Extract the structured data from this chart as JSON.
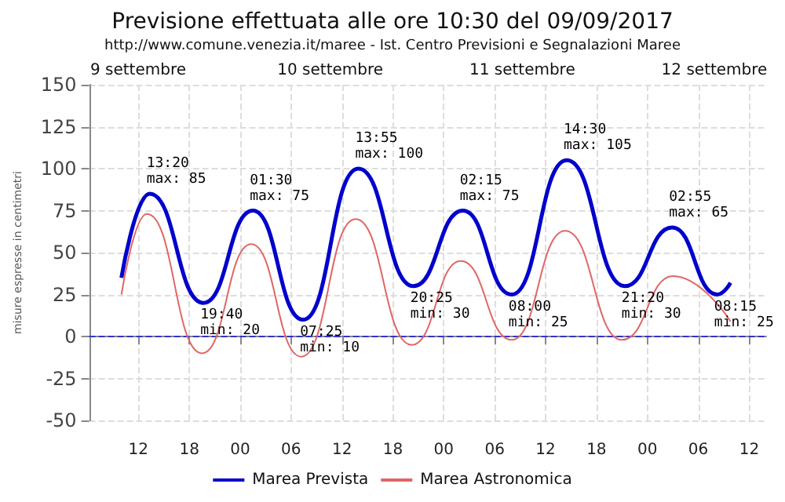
{
  "chart_data": {
    "type": "line",
    "title": "Previsione effettuata alle ore 10:30 del 09/09/2017",
    "subtitle": "http://www.comune.venezia.it/maree - Ist. Centro Previsioni e Segnalazioni Maree",
    "ylabel": "misure espresse in centimetri",
    "series": [
      {
        "name": "Marea Prevista",
        "color": "#0000cc",
        "x": [
          10,
          13.33,
          19.67,
          25.5,
          31.42,
          37.92,
          44.42,
          50.25,
          56,
          62.5,
          69.33,
          74.92,
          80.25,
          81.8
        ],
        "values": [
          35,
          85,
          20,
          75,
          10,
          100,
          30,
          75,
          25,
          105,
          30,
          65,
          25,
          32
        ]
      },
      {
        "name": "Marea Astronomica",
        "color": "#e06666",
        "x": [
          10,
          13,
          19.5,
          25.3,
          31.2,
          37.6,
          44.2,
          50,
          56,
          62.3,
          69,
          75,
          81.8
        ],
        "values": [
          25,
          73,
          -10,
          55,
          -12,
          70,
          -5,
          45,
          -2,
          63,
          -2,
          36,
          9
        ]
      }
    ],
    "xlim": [
      6.2,
      86
    ],
    "xticks": [
      {
        "value": 12,
        "label": "12"
      },
      {
        "value": 18,
        "label": "18"
      },
      {
        "value": 24,
        "label": "00"
      },
      {
        "value": 30,
        "label": "06"
      },
      {
        "value": 36,
        "label": "12"
      },
      {
        "value": 42,
        "label": "18"
      },
      {
        "value": 48,
        "label": "00"
      },
      {
        "value": 54,
        "label": "06"
      },
      {
        "value": 60,
        "label": "12"
      },
      {
        "value": 66,
        "label": "18"
      },
      {
        "value": 72,
        "label": "00"
      },
      {
        "value": 78,
        "label": "06"
      },
      {
        "value": 84,
        "label": "12"
      }
    ],
    "ylim": [
      -50,
      150
    ],
    "yticks": [
      -50,
      -25,
      0,
      25,
      50,
      75,
      100,
      125,
      150
    ],
    "ref_lines": [
      {
        "axis": "y",
        "value": 0,
        "color": "#3333cc",
        "line_style": "dashed"
      }
    ],
    "annotations": [
      "9 settembre",
      "10 settembre",
      "11 settembre",
      "12 settembre",
      {
        "text": "13:20\nmax: 85",
        "x": 13.33,
        "y": 85
      },
      {
        "text": "19:40\nmin: 20",
        "x": 19.67,
        "y": 20
      },
      {
        "text": "01:30\nmax: 75",
        "x": 25.5,
        "y": 75
      },
      {
        "text": "07:25\nmin: 10",
        "x": 31.42,
        "y": 10
      },
      {
        "text": "13:55\nmax: 100",
        "x": 37.92,
        "y": 100
      },
      {
        "text": "20:25\nmin: 30",
        "x": 44.42,
        "y": 30
      },
      {
        "text": "02:15\nmax: 75",
        "x": 50.25,
        "y": 75
      },
      {
        "text": "08:00\nmin: 25",
        "x": 56,
        "y": 25
      },
      {
        "text": "14:30\nmax: 105",
        "x": 62.5,
        "y": 105
      },
      {
        "text": "21:20\nmin: 30",
        "x": 69.33,
        "y": 30
      },
      {
        "text": "02:55\nmax: 65",
        "x": 74.92,
        "y": 65
      },
      {
        "text": "08:15\nmin: 25",
        "x": 80.25,
        "y": 25
      }
    ],
    "grid": true,
    "legend": "bottom",
    "marker": "none",
    "line_style": "solid"
  }
}
